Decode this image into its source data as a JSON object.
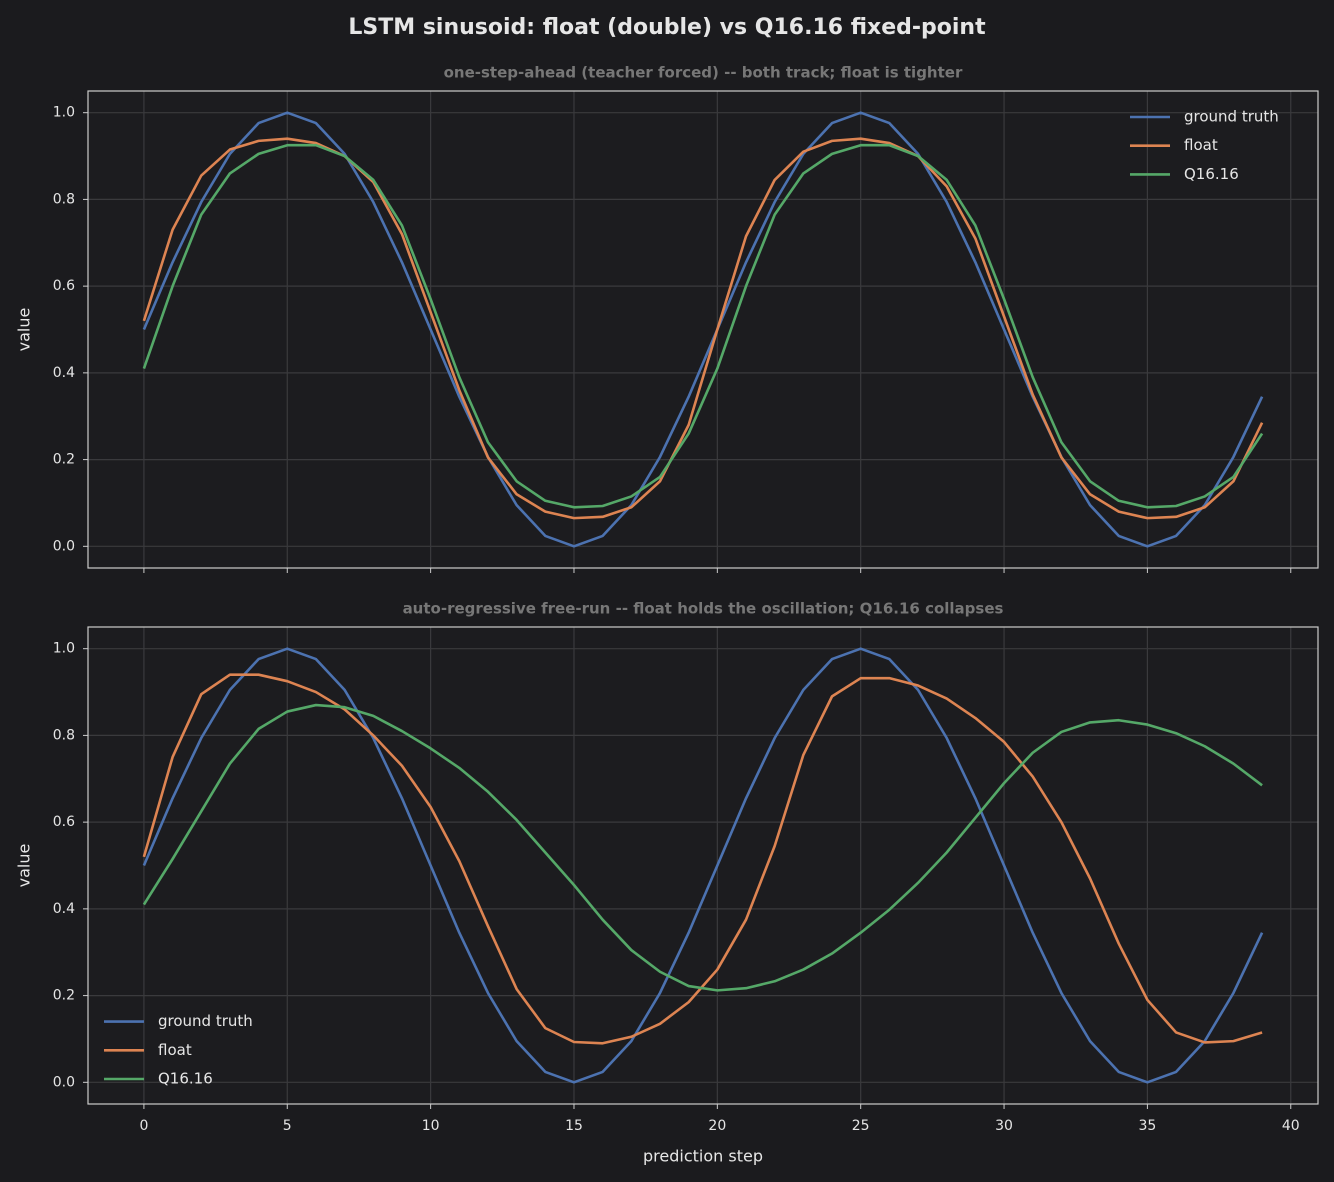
{
  "title": "LSTM sinusoid: float (double) vs Q16.16 fixed-point",
  "chart_data": [
    {
      "type": "line",
      "title": "one-step-ahead (teacher forced) -- both track; float is tighter",
      "ylabel": "value",
      "x": [
        0,
        1,
        2,
        3,
        4,
        5,
        6,
        7,
        8,
        9,
        10,
        11,
        12,
        13,
        14,
        15,
        16,
        17,
        18,
        19,
        20,
        21,
        22,
        23,
        24,
        25,
        26,
        27,
        28,
        29,
        30,
        31,
        32,
        33,
        34,
        35,
        36,
        37,
        38,
        39
      ],
      "xlim": [
        -1.95,
        40.95
      ],
      "xticks": [
        0,
        5,
        10,
        15,
        20,
        25,
        30,
        35,
        40
      ],
      "ylim": [
        -0.05,
        1.05
      ],
      "yticks": [
        {
          "value": 0,
          "label": "0.0"
        },
        0.2,
        0.4,
        0.6,
        0.8,
        {
          "value": 1,
          "label": "1.0"
        }
      ],
      "grid": true,
      "legend": "upper right",
      "series": [
        {
          "name": "ground truth",
          "color": "#4c72b0",
          "values": [
            0.5,
            0.655,
            0.794,
            0.905,
            0.976,
            1.0,
            0.976,
            0.905,
            0.794,
            0.655,
            0.5,
            0.345,
            0.206,
            0.095,
            0.024,
            0.0,
            0.024,
            0.095,
            0.206,
            0.345,
            0.5,
            0.655,
            0.794,
            0.905,
            0.976,
            1.0,
            0.976,
            0.905,
            0.794,
            0.655,
            0.5,
            0.345,
            0.206,
            0.095,
            0.024,
            0.0,
            0.024,
            0.095,
            0.206,
            0.345
          ]
        },
        {
          "name": "float",
          "color": "#dd8452",
          "values": [
            0.52,
            0.73,
            0.855,
            0.915,
            0.935,
            0.94,
            0.93,
            0.9,
            0.84,
            0.72,
            0.54,
            0.36,
            0.205,
            0.12,
            0.08,
            0.065,
            0.068,
            0.09,
            0.15,
            0.28,
            0.5,
            0.715,
            0.845,
            0.91,
            0.935,
            0.94,
            0.93,
            0.9,
            0.83,
            0.71,
            0.53,
            0.35,
            0.205,
            0.12,
            0.08,
            0.065,
            0.068,
            0.09,
            0.15,
            0.285
          ]
        },
        {
          "name": "Q16.16",
          "color": "#55a868",
          "values": [
            0.41,
            0.6,
            0.765,
            0.86,
            0.905,
            0.925,
            0.925,
            0.9,
            0.845,
            0.74,
            0.57,
            0.39,
            0.24,
            0.15,
            0.105,
            0.09,
            0.093,
            0.115,
            0.16,
            0.26,
            0.41,
            0.6,
            0.765,
            0.86,
            0.905,
            0.925,
            0.925,
            0.9,
            0.845,
            0.74,
            0.57,
            0.39,
            0.24,
            0.15,
            0.105,
            0.09,
            0.093,
            0.115,
            0.16,
            0.26
          ]
        }
      ]
    },
    {
      "type": "line",
      "title": "auto-regressive free-run -- float holds the oscillation; Q16.16 collapses",
      "ylabel": "value",
      "xlabel": "prediction step",
      "x": [
        0,
        1,
        2,
        3,
        4,
        5,
        6,
        7,
        8,
        9,
        10,
        11,
        12,
        13,
        14,
        15,
        16,
        17,
        18,
        19,
        20,
        21,
        22,
        23,
        24,
        25,
        26,
        27,
        28,
        29,
        30,
        31,
        32,
        33,
        34,
        35,
        36,
        37,
        38,
        39
      ],
      "xlim": [
        -1.95,
        40.95
      ],
      "xticks": [
        0,
        5,
        10,
        15,
        20,
        25,
        30,
        35,
        40
      ],
      "ylim": [
        -0.05,
        1.05
      ],
      "yticks": [
        {
          "value": 0,
          "label": "0.0"
        },
        0.2,
        0.4,
        0.6,
        0.8,
        {
          "value": 1,
          "label": "1.0"
        }
      ],
      "grid": true,
      "legend": "lower left",
      "series": [
        {
          "name": "ground truth",
          "color": "#4c72b0",
          "values": [
            0.5,
            0.655,
            0.794,
            0.905,
            0.976,
            1.0,
            0.976,
            0.905,
            0.794,
            0.655,
            0.5,
            0.345,
            0.206,
            0.095,
            0.024,
            0.0,
            0.024,
            0.095,
            0.206,
            0.345,
            0.5,
            0.655,
            0.794,
            0.905,
            0.976,
            1.0,
            0.976,
            0.905,
            0.794,
            0.655,
            0.5,
            0.345,
            0.206,
            0.095,
            0.024,
            0.0,
            0.024,
            0.095,
            0.206,
            0.345
          ]
        },
        {
          "name": "float",
          "color": "#dd8452",
          "values": [
            0.52,
            0.75,
            0.895,
            0.94,
            0.94,
            0.925,
            0.9,
            0.86,
            0.8,
            0.73,
            0.635,
            0.51,
            0.36,
            0.215,
            0.125,
            0.093,
            0.09,
            0.105,
            0.135,
            0.185,
            0.26,
            0.375,
            0.545,
            0.755,
            0.89,
            0.932,
            0.932,
            0.915,
            0.885,
            0.84,
            0.785,
            0.705,
            0.6,
            0.47,
            0.32,
            0.19,
            0.115,
            0.092,
            0.095,
            0.115
          ]
        },
        {
          "name": "Q16.16",
          "color": "#55a868",
          "values": [
            0.41,
            0.515,
            0.625,
            0.735,
            0.815,
            0.855,
            0.87,
            0.865,
            0.845,
            0.81,
            0.77,
            0.725,
            0.67,
            0.605,
            0.53,
            0.455,
            0.375,
            0.305,
            0.255,
            0.222,
            0.212,
            0.217,
            0.233,
            0.26,
            0.297,
            0.345,
            0.398,
            0.46,
            0.53,
            0.61,
            0.69,
            0.76,
            0.808,
            0.83,
            0.835,
            0.825,
            0.805,
            0.775,
            0.735,
            0.685
          ]
        }
      ]
    }
  ]
}
